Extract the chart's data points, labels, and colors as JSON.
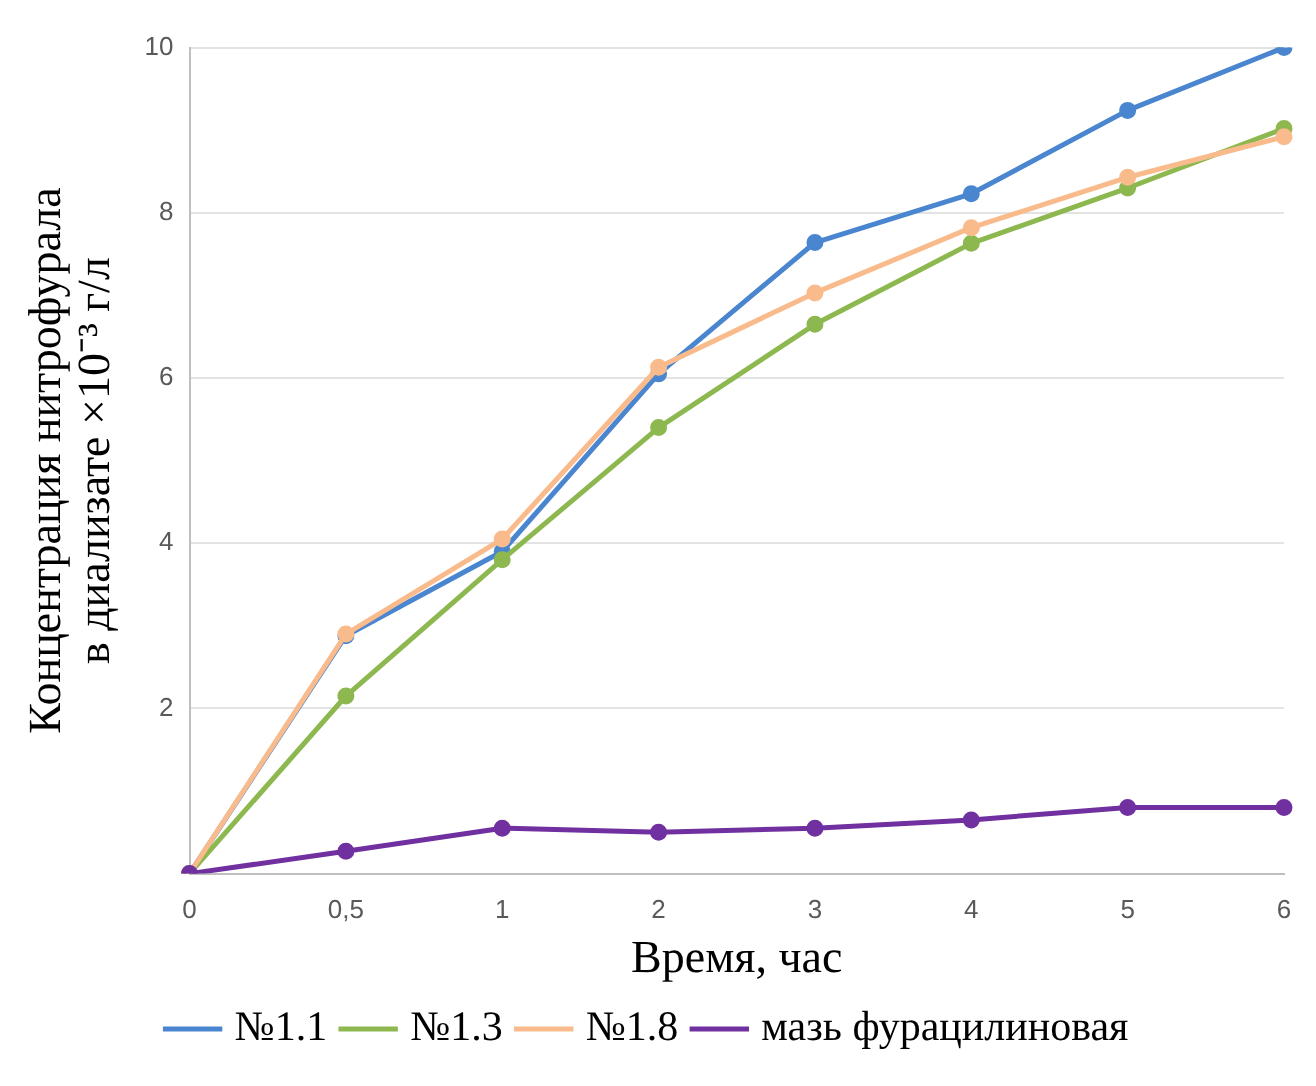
{
  "chart_data": {
    "type": "line",
    "xlabel": "Время, час",
    "ylabel": "Концентрация нитрофурала\nв диализате ×10⁻³ г/л",
    "categories": [
      "0",
      "0,5",
      "1",
      "2",
      "3",
      "4",
      "5",
      "6"
    ],
    "series": [
      {
        "name": "№1.1",
        "color": "#4a86d0",
        "values": [
          0,
          2.88,
          3.9,
          6.05,
          7.64,
          8.23,
          9.24,
          10
        ]
      },
      {
        "name": "№1.3",
        "color": "#8db84f",
        "values": [
          0,
          2.15,
          3.8,
          5.4,
          6.65,
          7.63,
          8.3,
          9.02
        ]
      },
      {
        "name": "№1.8",
        "color": "#f9bb8b",
        "values": [
          0,
          2.9,
          4.05,
          6.13,
          7.03,
          7.82,
          8.43,
          8.92
        ]
      },
      {
        "name": "мазь фурацилиновая",
        "color": "#7030a0",
        "values": [
          0,
          0.27,
          0.55,
          0.5,
          0.55,
          0.65,
          0.8,
          0.8
        ]
      }
    ],
    "ylim": [
      0,
      10
    ],
    "yticks": [
      {
        "value": 0,
        "label": null
      },
      2,
      4,
      6,
      8,
      10
    ],
    "grid": "y",
    "legend": "bottom",
    "marker": "circle",
    "line_style": "solid"
  }
}
